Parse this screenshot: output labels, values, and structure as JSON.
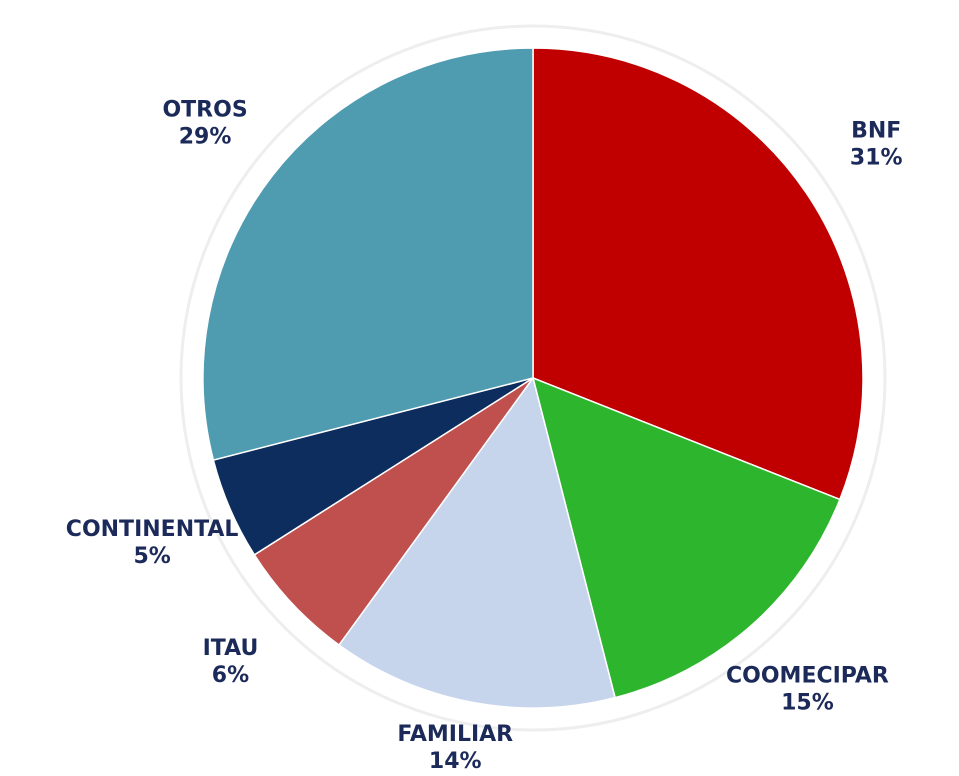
{
  "chart_data": {
    "type": "pie",
    "categories": [
      "BNF",
      "COOMECIPAR",
      "FAMILIAR",
      "ITAU",
      "CONTINENTAL",
      "OTROS"
    ],
    "values": [
      31,
      15,
      14,
      6,
      5,
      29
    ],
    "value_labels": [
      "31%",
      "15%",
      "14%",
      "6%",
      "5%",
      "29%"
    ],
    "colors": [
      "#c00000",
      "#2db52d",
      "#c6d4ec",
      "#c0504d",
      "#0d2d5e",
      "#4f9bb0"
    ]
  }
}
